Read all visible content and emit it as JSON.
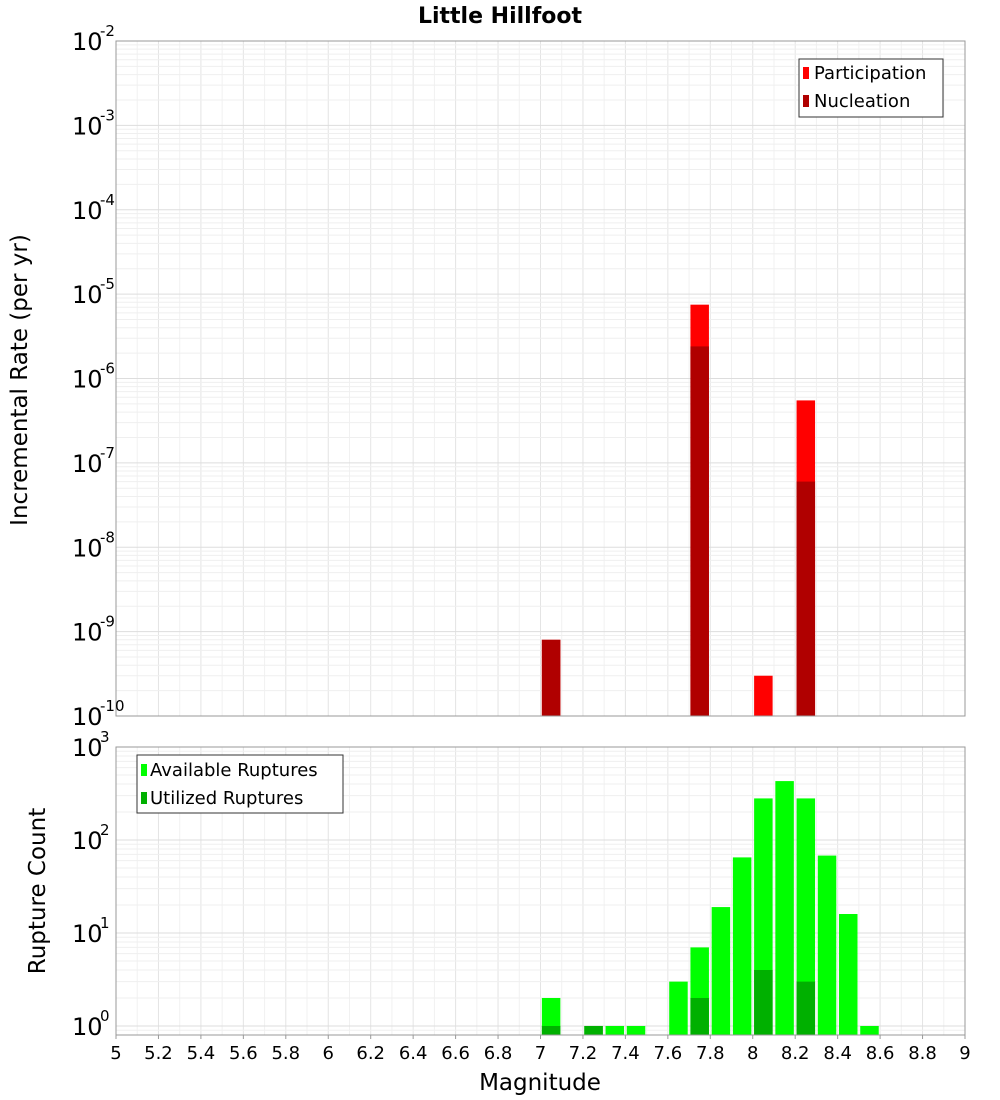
{
  "chart_data": [
    {
      "type": "bar",
      "title": "Little Hillfoot",
      "xlabel": "",
      "ylabel": "Incremental Rate (per yr)",
      "y_scale": "log",
      "xlim": [
        5,
        9
      ],
      "ylim": [
        1e-10,
        0.01
      ],
      "yticks": [
        {
          "base": "10",
          "exp": "-10"
        },
        {
          "base": "10",
          "exp": "-9"
        },
        {
          "base": "10",
          "exp": "-8"
        },
        {
          "base": "10",
          "exp": "-7"
        },
        {
          "base": "10",
          "exp": "-6"
        },
        {
          "base": "10",
          "exp": "-5"
        },
        {
          "base": "10",
          "exp": "-4"
        },
        {
          "base": "10",
          "exp": "-3"
        },
        {
          "base": "10",
          "exp": "-2"
        }
      ],
      "legend": {
        "placement": "top-right",
        "entries": [
          "Participation",
          "Nucleation"
        ]
      },
      "colors": {
        "Participation": "#ff0000",
        "Nucleation": "#b00000"
      },
      "series": [
        {
          "name": "Participation",
          "x": [
            7.05,
            7.75,
            8.05,
            8.25
          ],
          "values": [
            8e-10,
            7.5e-06,
            3e-10,
            5.5e-07
          ]
        },
        {
          "name": "Nucleation",
          "x": [
            7.05,
            7.75,
            8.25
          ],
          "values": [
            8e-10,
            2.4e-06,
            6e-08
          ]
        }
      ],
      "grid": true
    },
    {
      "type": "bar",
      "xlabel": "Magnitude",
      "ylabel": "Rupture Count",
      "y_scale": "log",
      "xlim": [
        5,
        9
      ],
      "ylim": [
        0.8,
        1000
      ],
      "xticks": [
        "5",
        "5.2",
        "5.4",
        "5.6",
        "5.8",
        "6",
        "6.2",
        "6.4",
        "6.6",
        "6.8",
        "7",
        "7.2",
        "7.4",
        "7.6",
        "7.8",
        "8",
        "8.2",
        "8.4",
        "8.6",
        "8.8",
        "9"
      ],
      "yticks": [
        {
          "base": "10",
          "exp": "0"
        },
        {
          "base": "10",
          "exp": "1"
        },
        {
          "base": "10",
          "exp": "2"
        },
        {
          "base": "10",
          "exp": "3"
        }
      ],
      "legend": {
        "placement": "top-left",
        "entries": [
          "Available Ruptures",
          "Utilized Ruptures"
        ]
      },
      "colors": {
        "Available Ruptures": "#00ff00",
        "Utilized Ruptures": "#00b000"
      },
      "series": [
        {
          "name": "Available Ruptures",
          "x": [
            7.05,
            7.25,
            7.35,
            7.45,
            7.65,
            7.75,
            7.85,
            7.95,
            8.05,
            8.15,
            8.25,
            8.35,
            8.45,
            8.55
          ],
          "values": [
            2,
            1,
            1,
            1,
            3,
            7,
            19,
            65,
            280,
            430,
            280,
            68,
            16,
            1
          ]
        },
        {
          "name": "Utilized Ruptures",
          "x": [
            7.05,
            7.25,
            7.75,
            8.05,
            8.25
          ],
          "values": [
            1,
            1,
            2,
            4,
            3
          ]
        }
      ],
      "grid": true
    }
  ]
}
